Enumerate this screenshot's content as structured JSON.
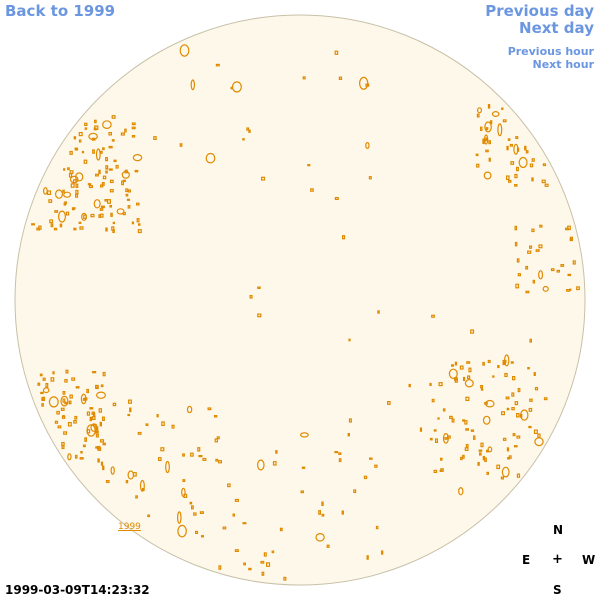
{
  "nav": {
    "back_label": "Back to 1999",
    "prev_day_label": "Previous day",
    "next_day_label": "Next day",
    "prev_hour_label": "Previous hour",
    "next_hour_label": "Next hour"
  },
  "sun_map": {
    "year_label": "1999",
    "disk_color": "#fdf8ea",
    "limb_color": "#c8c0a8",
    "contour_color": "#e08a00"
  },
  "compass": {
    "north": "N",
    "east": "E",
    "center": "+",
    "west": "W",
    "south": "S"
  },
  "timestamp": "1999-03-09T14:23:32"
}
